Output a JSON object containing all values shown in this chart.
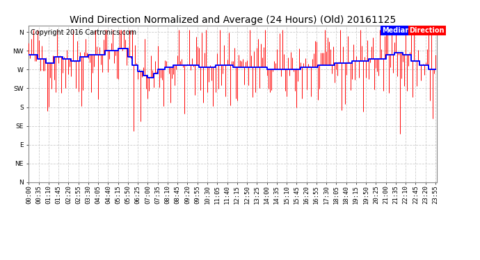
{
  "title": "Wind Direction Normalized and Average (24 Hours) (Old) 20161125",
  "copyright": "Copyright 2016 Cartronics.com",
  "ylabel_ticks": [
    360,
    315,
    270,
    225,
    180,
    135,
    90,
    45,
    0
  ],
  "ylabel_labels": [
    "N",
    "NW",
    "W",
    "SW",
    "S",
    "SE",
    "E",
    "NE",
    "N"
  ],
  "ylim": [
    0,
    375
  ],
  "plot_bg_color": "#ffffff",
  "grid_color": "#cccccc",
  "red_color": "#ff0000",
  "blue_color": "#0000ff",
  "title_fontsize": 10,
  "copyright_fontsize": 7,
  "tick_fontsize": 6.5,
  "seed": 42,
  "tick_interval_minutes": 35,
  "n_points": 288
}
